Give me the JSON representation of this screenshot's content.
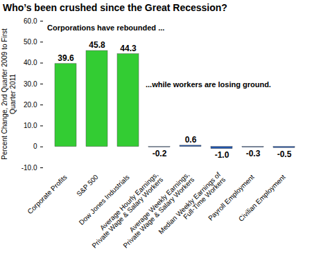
{
  "chart_data": {
    "type": "bar",
    "title": "Who’s been crushed since the Great Recession?",
    "y_label": "Percent Change, 2nd Quarter 2009 to First Quarter 2011",
    "annotations": [
      "Corporations have rebounded ...",
      "...while workers are losing ground."
    ],
    "categories": [
      "Corporate Profits",
      "S&P 500",
      "Dow Jones Industrials",
      "Average Hourly Earnings, Private Wage & Salary Workers",
      "Average Weekly Earnings, Private Wage & Salary Workers",
      "Median Weekly Earnings of Full-Time Workers",
      "Payroll Employment",
      "Civilian Employment"
    ],
    "values": [
      39.6,
      45.8,
      44.3,
      -0.2,
      0.6,
      -1.0,
      -0.3,
      -0.5
    ],
    "value_labels": [
      "39.6",
      "45.8",
      "44.3",
      "-0.2",
      "0.6",
      "-1.0",
      "-0.3",
      "-0.5"
    ],
    "colors": [
      "#33cc33",
      "#33cc33",
      "#33cc33",
      "#2255aa",
      "#2255aa",
      "#2255aa",
      "#2255aa",
      "#2255aa"
    ],
    "ylim": [
      -10,
      60
    ],
    "yticks": [
      {
        "value": -10,
        "label": "-10.0"
      },
      0,
      {
        "value": 10,
        "label": "10.0"
      },
      {
        "value": 20,
        "label": "20.0"
      },
      {
        "value": 30,
        "label": "30.0"
      },
      {
        "value": 40,
        "label": "40.0"
      },
      {
        "value": 50,
        "label": "50.0"
      },
      {
        "value": 60,
        "label": "60.0"
      }
    ],
    "grid": false,
    "data_labels": true
  }
}
